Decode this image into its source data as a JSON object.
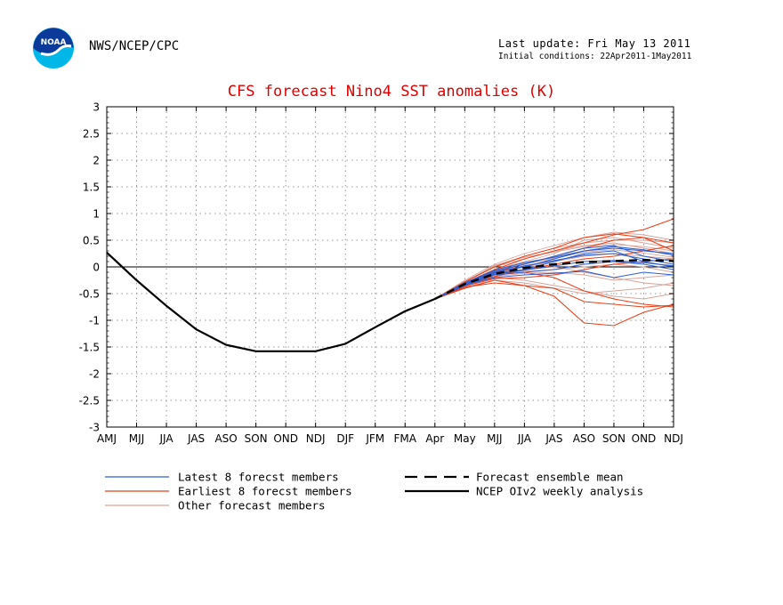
{
  "header": {
    "agency": "NWS/NCEP/CPC",
    "last_update": "Last update: Fri May 13 2011",
    "initial_conditions": "Initial conditions: 22Apr2011-1May2011",
    "logo_text": "NOAA"
  },
  "colors": {
    "latest": "#2f5fd0",
    "earliest": "#e8401a",
    "other": "#d9a49a",
    "mean": "#000000",
    "analysis": "#000000"
  },
  "chart_data": {
    "type": "line",
    "title": "CFS forecast Nino4 SST anomalies (K)",
    "categories": [
      "AMJ",
      "MJJ",
      "JJA",
      "JAS",
      "ASO",
      "SON",
      "OND",
      "NDJ",
      "DJF",
      "JFM",
      "FMA",
      "Apr",
      "May",
      "MJJ",
      "JJA",
      "JAS",
      "ASO",
      "SON",
      "OND",
      "NDJ"
    ],
    "ylim": [
      -3,
      3
    ],
    "yticks": [
      "3",
      "2.5",
      "2",
      "1.5",
      "1",
      "0.5",
      "0",
      "-0.5",
      "-1",
      "-1.5",
      "-2",
      "-2.5",
      "-3"
    ],
    "ytick_values": [
      3,
      2.5,
      2,
      1.5,
      1,
      0.5,
      0,
      -0.5,
      -1,
      -1.5,
      -2,
      -2.5,
      -3
    ],
    "grid": true,
    "legend": [
      {
        "key": "latest",
        "label": "Latest 8 forecst members"
      },
      {
        "key": "earliest",
        "label": "Earliest 8 forecst members"
      },
      {
        "key": "other",
        "label": "Other forecast members"
      },
      {
        "key": "mean",
        "label": "Forecast ensemble mean"
      },
      {
        "key": "analysis",
        "label": "NCEP OIv2 weekly analysis"
      }
    ],
    "analysis": {
      "x": [
        0,
        1,
        2,
        3,
        4,
        5,
        6,
        7,
        8,
        9,
        10,
        11
      ],
      "values": [
        0.27,
        -0.25,
        -0.73,
        -1.17,
        -1.46,
        -1.58,
        -1.58,
        -1.58,
        -1.44,
        -1.13,
        -0.83,
        -0.6
      ]
    },
    "ensemble_mean": {
      "x": [
        11,
        12,
        13,
        14,
        15,
        16,
        17,
        18,
        19
      ],
      "values": [
        -0.6,
        -0.32,
        -0.13,
        -0.02,
        0.05,
        0.09,
        0.11,
        0.13,
        0.11
      ]
    },
    "members": [
      {
        "group": "earliest",
        "values": [
          -0.6,
          -0.3,
          -0.05,
          0.15,
          0.3,
          0.45,
          0.6,
          0.7,
          0.9
        ]
      },
      {
        "group": "earliest",
        "values": [
          -0.6,
          -0.35,
          -0.15,
          -0.1,
          -0.2,
          -0.45,
          -0.6,
          -0.7,
          -0.75
        ]
      },
      {
        "group": "earliest",
        "values": [
          -0.6,
          -0.4,
          -0.25,
          -0.35,
          -0.55,
          -1.05,
          -1.1,
          -0.85,
          -0.7
        ]
      },
      {
        "group": "earliest",
        "values": [
          -0.6,
          -0.3,
          -0.1,
          0.05,
          0.2,
          0.35,
          0.5,
          0.55,
          0.45
        ]
      },
      {
        "group": "earliest",
        "values": [
          -0.6,
          -0.38,
          -0.3,
          -0.35,
          -0.4,
          -0.65,
          -0.7,
          -0.75,
          -0.72
        ]
      },
      {
        "group": "earliest",
        "values": [
          -0.6,
          -0.28,
          0.0,
          0.2,
          0.35,
          0.55,
          0.62,
          0.55,
          0.3
        ]
      },
      {
        "group": "earliest",
        "values": [
          -0.6,
          -0.33,
          -0.18,
          -0.05,
          0.05,
          0.15,
          0.2,
          0.3,
          0.4
        ]
      },
      {
        "group": "earliest",
        "values": [
          -0.6,
          -0.36,
          -0.22,
          -0.2,
          -0.15,
          -0.05,
          0.05,
          0.1,
          0.15
        ]
      },
      {
        "group": "latest",
        "values": [
          -0.6,
          -0.33,
          -0.12,
          -0.05,
          0.1,
          0.25,
          0.3,
          0.1,
          0.0
        ]
      },
      {
        "group": "latest",
        "values": [
          -0.6,
          -0.3,
          -0.08,
          0.05,
          0.2,
          0.35,
          0.4,
          0.2,
          0.1
        ]
      },
      {
        "group": "latest",
        "values": [
          -0.6,
          -0.35,
          -0.15,
          -0.1,
          -0.05,
          0.05,
          0.1,
          0.05,
          -0.05
        ]
      },
      {
        "group": "latest",
        "values": [
          -0.6,
          -0.32,
          -0.1,
          0.0,
          0.15,
          0.3,
          0.35,
          0.3,
          0.25
        ]
      },
      {
        "group": "latest",
        "values": [
          -0.6,
          -0.34,
          -0.2,
          -0.15,
          -0.12,
          -0.08,
          -0.2,
          -0.1,
          -0.15
        ]
      },
      {
        "group": "latest",
        "values": [
          -0.6,
          -0.31,
          -0.11,
          0.02,
          0.12,
          0.22,
          0.25,
          0.15,
          0.05
        ]
      },
      {
        "group": "latest",
        "values": [
          -0.6,
          -0.33,
          -0.14,
          -0.06,
          0.02,
          0.1,
          0.12,
          0.08,
          0.02
        ]
      },
      {
        "group": "latest",
        "values": [
          -0.6,
          -0.3,
          -0.06,
          0.08,
          0.18,
          0.3,
          0.38,
          0.32,
          0.22
        ]
      },
      {
        "group": "other",
        "values": [
          -0.6,
          -0.25,
          0.05,
          0.25,
          0.4,
          0.55,
          0.65,
          0.6,
          0.5
        ]
      },
      {
        "group": "other",
        "values": [
          -0.6,
          -0.35,
          -0.2,
          -0.25,
          -0.35,
          -0.45,
          -0.55,
          -0.6,
          -0.5
        ]
      },
      {
        "group": "other",
        "values": [
          -0.6,
          -0.28,
          0.0,
          0.15,
          0.3,
          0.4,
          0.45,
          0.35,
          0.25
        ]
      },
      {
        "group": "other",
        "values": [
          -0.6,
          -0.32,
          -0.1,
          -0.05,
          0.0,
          -0.1,
          -0.2,
          -0.3,
          -0.35
        ]
      },
      {
        "group": "other",
        "values": [
          -0.6,
          -0.3,
          -0.05,
          0.1,
          0.25,
          0.5,
          0.55,
          0.45,
          0.35
        ]
      },
      {
        "group": "other",
        "values": [
          -0.6,
          -0.36,
          -0.18,
          -0.12,
          -0.1,
          -0.15,
          -0.25,
          -0.2,
          -0.15
        ]
      },
      {
        "group": "other",
        "values": [
          -0.6,
          -0.27,
          0.02,
          0.2,
          0.35,
          0.45,
          0.5,
          0.5,
          0.45
        ]
      },
      {
        "group": "other",
        "values": [
          -0.6,
          -0.33,
          -0.12,
          0.0,
          0.1,
          0.2,
          0.25,
          0.2,
          0.15
        ]
      },
      {
        "group": "other",
        "values": [
          -0.6,
          -0.34,
          -0.15,
          -0.08,
          -0.05,
          0.0,
          0.05,
          0.0,
          -0.1
        ]
      },
      {
        "group": "other",
        "values": [
          -0.6,
          -0.29,
          0.03,
          0.18,
          0.28,
          0.38,
          0.42,
          0.38,
          0.3
        ]
      },
      {
        "group": "other",
        "values": [
          -0.6,
          -0.38,
          -0.25,
          -0.3,
          -0.4,
          -0.5,
          -0.45,
          -0.4,
          -0.3
        ]
      },
      {
        "group": "other",
        "values": [
          -0.6,
          -0.31,
          -0.08,
          0.06,
          0.16,
          0.28,
          0.32,
          0.26,
          0.18
        ]
      }
    ]
  }
}
